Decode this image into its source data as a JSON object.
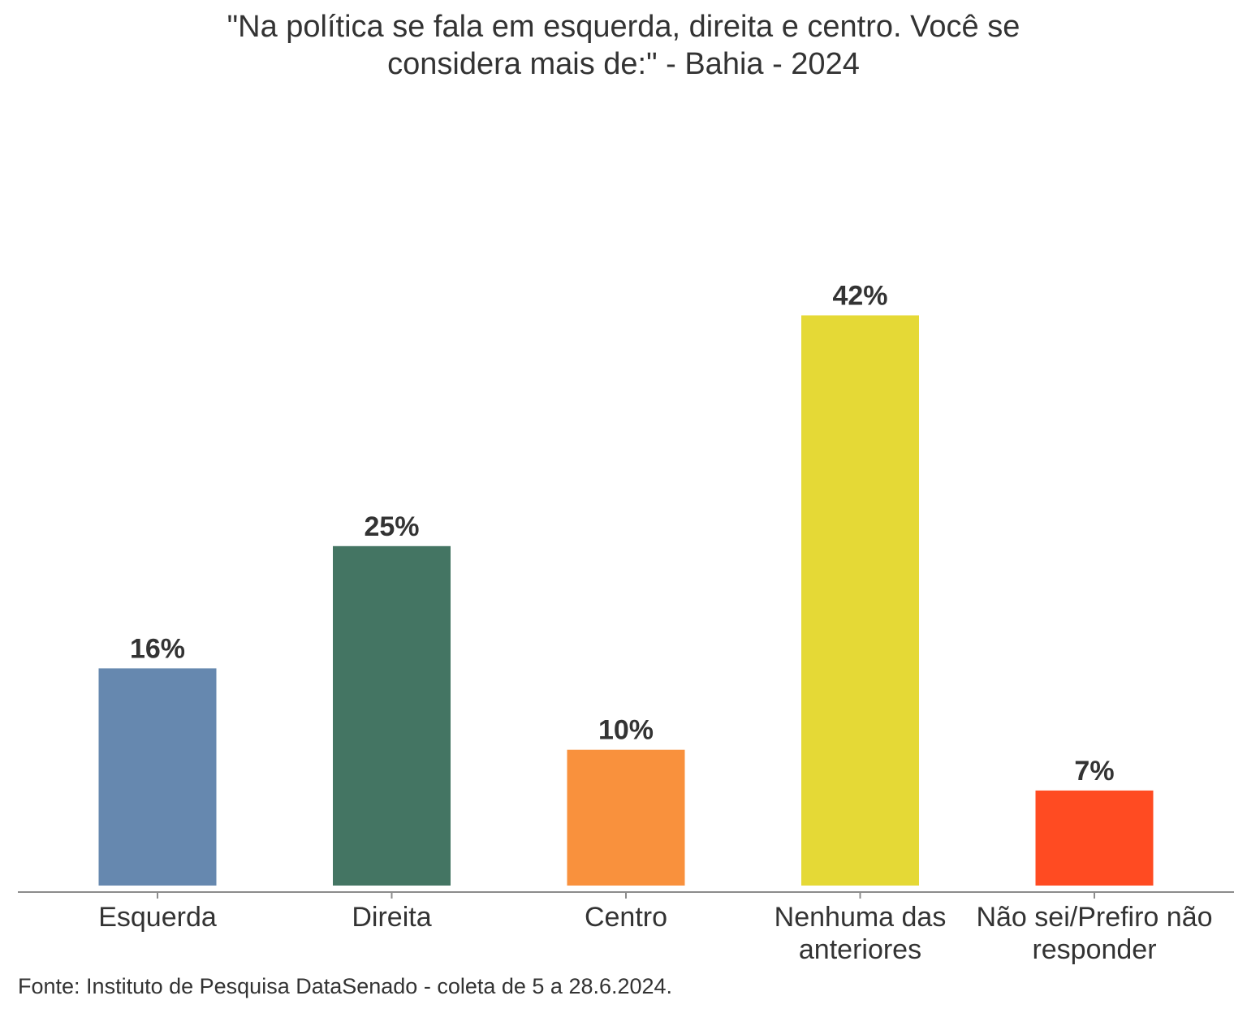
{
  "chart_data": {
    "type": "bar",
    "title_lines": [
      "\"Na política se fala em esquerda, direita e centro. Você se",
      "considera mais de:\" - Bahia - 2024"
    ],
    "categories": [
      [
        "Esquerda"
      ],
      [
        "Direita"
      ],
      [
        "Centro"
      ],
      [
        "Nenhuma das",
        "anteriores"
      ],
      [
        "Não sei/Prefiro não",
        "responder"
      ]
    ],
    "values": [
      16,
      25,
      10,
      42,
      7
    ],
    "value_labels": [
      "16%",
      "25%",
      "10%",
      "42%",
      "7%"
    ],
    "colors": [
      "#6688AF",
      "#447563",
      "#F9913D",
      "#E5D936",
      "#FF4B22"
    ],
    "xlabel": "",
    "ylabel": "",
    "ylim": [
      0,
      44
    ],
    "grid": false,
    "legend": "none"
  },
  "source": "Fonte: Instituto de Pesquisa DataSenado - coleta de 5 a 28.6.2024."
}
